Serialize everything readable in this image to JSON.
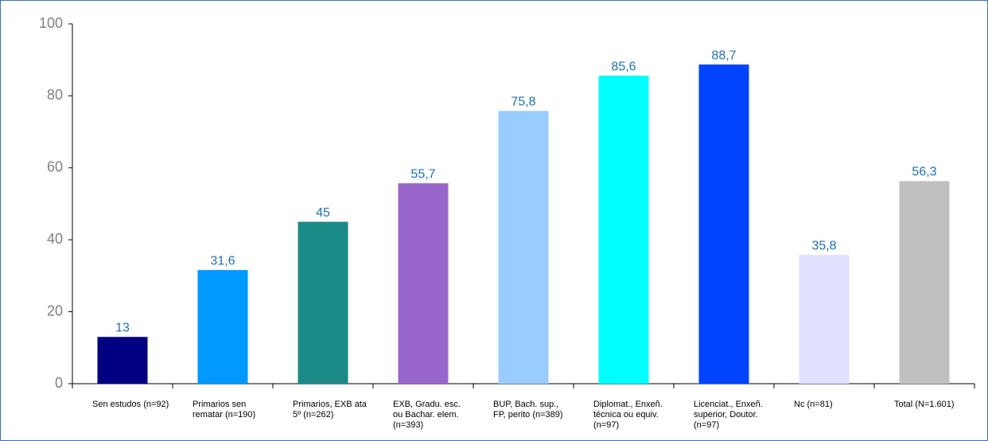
{
  "chart_data": {
    "type": "bar",
    "categories": [
      "Sen estudos (n=92)",
      "Primarios sen rematar (n=190)",
      "Primarios, EXB ata 5º (n=262)",
      "EXB, Gradu. esc. ou Bachar. elem. (n=393)",
      "BUP, Bach. sup., FP, perito (n=389)",
      "Diplomat., Enxeñ. técnica ou equiv. (n=97)",
      "Licenciat., Enxeñ. superior, Doutor. (n=97)",
      "Nc (n=81)",
      "Total (N=1.601)"
    ],
    "values": [
      13,
      31.6,
      45,
      55.7,
      75.8,
      85.6,
      88.7,
      35.8,
      56.3
    ],
    "value_labels": [
      "13",
      "31,6",
      "45",
      "55,7",
      "75,8",
      "85,6",
      "88,7",
      "35,8",
      "56,3"
    ],
    "colors": [
      "#000080",
      "#0099ff",
      "#1a8a87",
      "#9966cc",
      "#99ccff",
      "#00ffff",
      "#0044ff",
      "#e0e0ff",
      "#c0c0c0"
    ],
    "ylim": [
      0,
      100
    ],
    "yticks": [
      0,
      20,
      40,
      60,
      80,
      100
    ],
    "grid": false
  }
}
